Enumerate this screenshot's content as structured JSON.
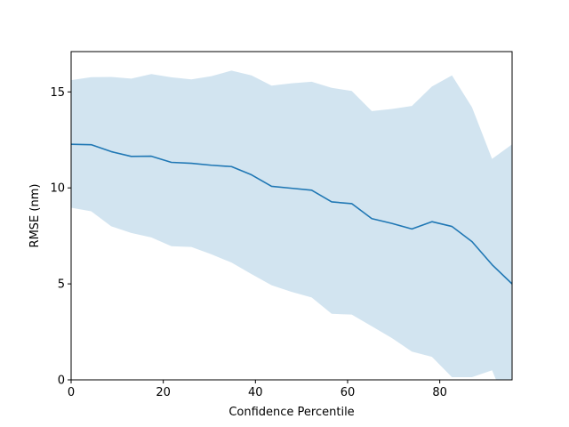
{
  "chart_data": {
    "type": "line",
    "title": "",
    "xlabel": "Confidence Percentile",
    "ylabel": "RMSE (nm)",
    "xlim": [
      0,
      95.7
    ],
    "ylim": [
      0,
      17.1
    ],
    "grid": false,
    "xticks": [
      0,
      20,
      40,
      60,
      80
    ],
    "yticks": [
      0,
      5,
      10,
      15
    ],
    "colors": {
      "line": "#1f77b4",
      "band": "#1f77b4"
    },
    "series": [
      {
        "x": [
          0,
          4.35,
          8.7,
          13.05,
          17.4,
          21.75,
          26.1,
          30.45,
          34.8,
          39.15,
          43.5,
          47.85,
          52.2,
          56.55,
          60.9,
          65.25,
          69.6,
          73.95,
          78.3,
          82.65,
          87.0,
          91.35,
          95.7
        ],
        "y": [
          12.27,
          12.25,
          11.89,
          11.64,
          11.65,
          11.33,
          11.28,
          11.18,
          11.11,
          10.68,
          10.08,
          9.98,
          9.88,
          9.27,
          9.18,
          8.4,
          8.15,
          7.86,
          8.24,
          7.99,
          7.2,
          6.0,
          5.0
        ],
        "lower": [
          8.97,
          8.78,
          8.0,
          7.65,
          7.42,
          6.96,
          6.92,
          6.54,
          6.11,
          5.51,
          4.93,
          4.58,
          4.29,
          3.44,
          3.4,
          2.79,
          2.18,
          1.47,
          1.2,
          0.14,
          0.14,
          0.5,
          -2.0
        ],
        "upper": [
          15.61,
          15.77,
          15.78,
          15.69,
          15.93,
          15.76,
          15.65,
          15.82,
          16.11,
          15.86,
          15.33,
          15.45,
          15.53,
          15.21,
          15.05,
          14.0,
          14.11,
          14.27,
          15.28,
          15.86,
          14.2,
          11.51,
          12.27
        ]
      }
    ]
  }
}
